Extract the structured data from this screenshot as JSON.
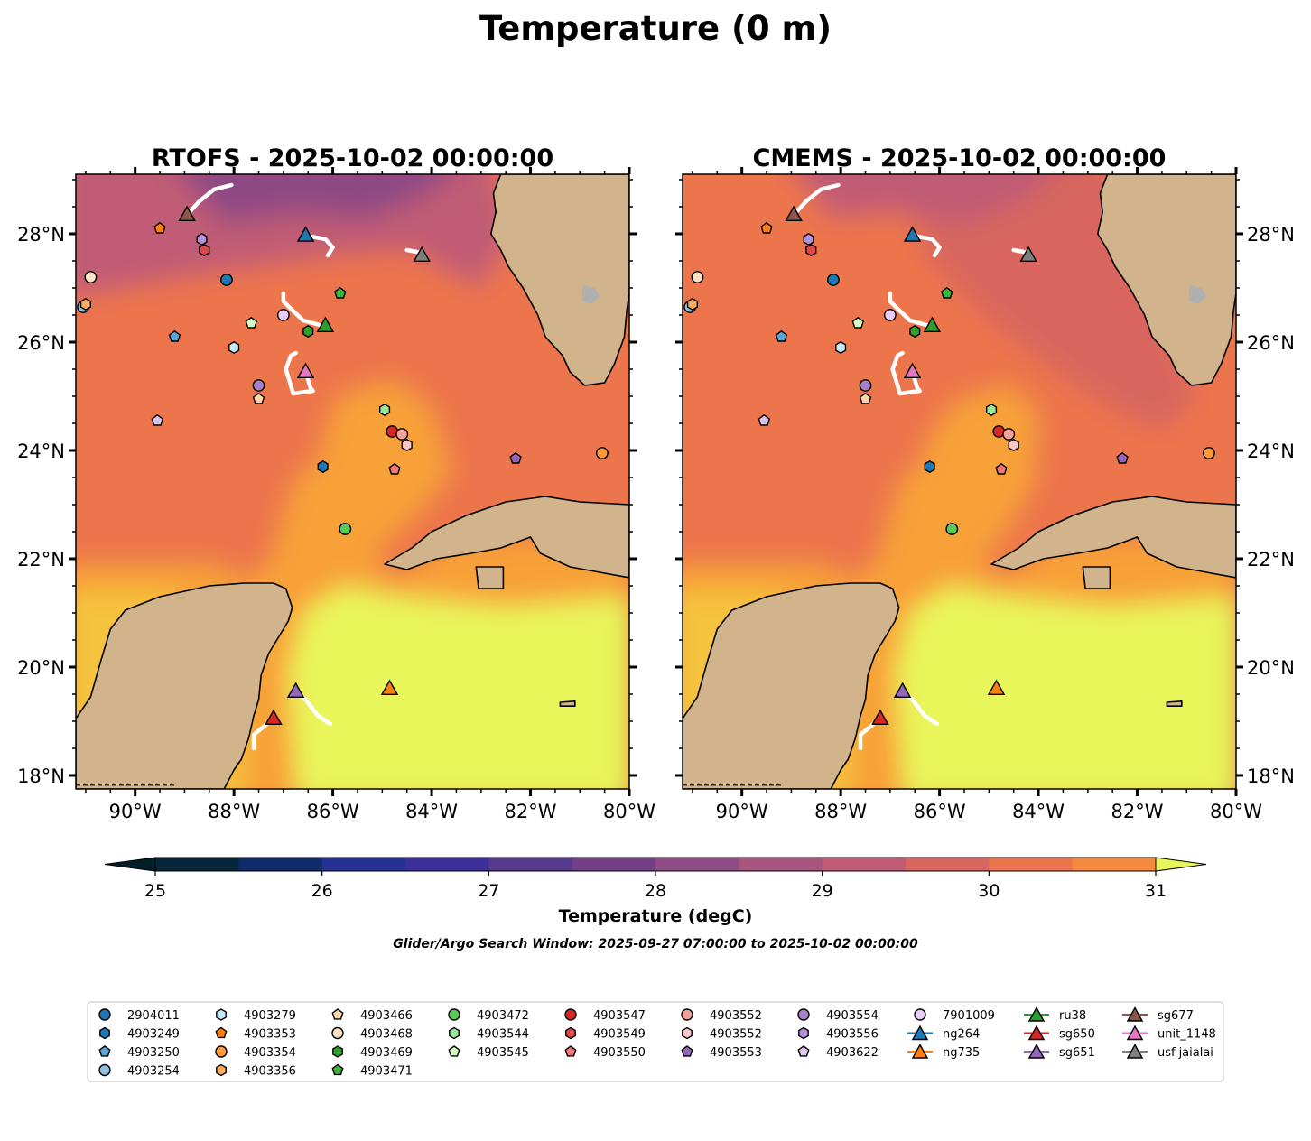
{
  "chart_data": {
    "type": "map",
    "title": "Temperature (0 m)",
    "panels": [
      {
        "title": "RTOFS - 2025-10-02 00:00:00",
        "variant": "rtofs"
      },
      {
        "title": "CMEMS - 2025-10-02 00:00:00",
        "variant": "cmems"
      }
    ],
    "lon_range": [
      -91.2,
      -80.0
    ],
    "lat_range": [
      17.75,
      29.1
    ],
    "lon_ticks": [
      -90,
      -88,
      -86,
      -84,
      -82,
      -80
    ],
    "lon_labels": [
      "90°W",
      "88°W",
      "86°W",
      "84°W",
      "82°W",
      "80°W"
    ],
    "lat_ticks": [
      18,
      20,
      22,
      24,
      26,
      28
    ],
    "lat_labels": [
      "18°N",
      "20°N",
      "22°N",
      "24°N",
      "26°N",
      "28°N"
    ],
    "colorbar": {
      "label": "Temperature (degC)",
      "min": 25,
      "max": 31,
      "step": 0.5,
      "extend": "both",
      "ticks": [
        "25",
        "26",
        "27",
        "28",
        "29",
        "30",
        "31"
      ],
      "colors": [
        "#062539",
        "#102b69",
        "#263196",
        "#3c2f9c",
        "#56388d",
        "#723f86",
        "#8d4a83",
        "#a7547f",
        "#c05c74",
        "#d8665f",
        "#ec754b",
        "#f58a3f",
        "#f8a137",
        "#f5c33d",
        "#e8f65a"
      ],
      "under_color": "#03202a",
      "over_color": "#e8f65a"
    },
    "search_window": "Glider/Argo Search Window: 2025-09-27 07:00:00 to 2025-10-02 00:00:00",
    "argo_floats": [
      {
        "name": "2904011",
        "lon": -88.15,
        "lat": 27.15,
        "marker": "circle",
        "color": "#1f77b4"
      },
      {
        "name": "4903249",
        "lon": -86.2,
        "lat": 23.7,
        "marker": "hexagon",
        "color": "#1f77b4"
      },
      {
        "name": "4903250",
        "lon": -89.2,
        "lat": 26.1,
        "marker": "pentagon",
        "color": "#5ba3d9"
      },
      {
        "name": "4903254",
        "lon": -91.05,
        "lat": 26.65,
        "marker": "circle",
        "color": "#8fbfe0"
      },
      {
        "name": "4903279",
        "lon": -88.0,
        "lat": 25.9,
        "marker": "hexagon",
        "color": "#c6e8fb"
      },
      {
        "name": "4903353",
        "lon": -89.5,
        "lat": 28.1,
        "marker": "pentagon",
        "color": "#ff7f0e"
      },
      {
        "name": "4903354",
        "lon": -80.55,
        "lat": 23.95,
        "marker": "circle",
        "color": "#fd9a3c"
      },
      {
        "name": "4903356",
        "lon": -91.0,
        "lat": 26.7,
        "marker": "hexagon",
        "color": "#ffab5e"
      },
      {
        "name": "4903466",
        "lon": -87.5,
        "lat": 24.95,
        "marker": "pentagon",
        "color": "#ffd4a6"
      },
      {
        "name": "4903468",
        "lon": -90.9,
        "lat": 27.2,
        "marker": "circle",
        "color": "#ffe2c6"
      },
      {
        "name": "4903469",
        "lon": -86.5,
        "lat": 26.2,
        "marker": "hexagon",
        "color": "#2ca02c"
      },
      {
        "name": "4903471",
        "lon": -85.85,
        "lat": 26.9,
        "marker": "pentagon",
        "color": "#3cb43c"
      },
      {
        "name": "4903472",
        "lon": -85.75,
        "lat": 22.55,
        "marker": "circle",
        "color": "#5ac85a"
      },
      {
        "name": "4903544",
        "lon": -84.95,
        "lat": 24.75,
        "marker": "hexagon",
        "color": "#98e698"
      },
      {
        "name": "4903545",
        "lon": -87.65,
        "lat": 26.35,
        "marker": "pentagon",
        "color": "#d3ffc0"
      },
      {
        "name": "4903547",
        "lon": -84.8,
        "lat": 24.35,
        "marker": "circle",
        "color": "#d62728"
      },
      {
        "name": "4903549",
        "lon": -88.6,
        "lat": 27.7,
        "marker": "hexagon",
        "color": "#e04848"
      },
      {
        "name": "4903550",
        "lon": -84.75,
        "lat": 23.65,
        "marker": "pentagon",
        "color": "#f0787a"
      },
      {
        "name": "4903552",
        "lon": -84.6,
        "lat": 24.3,
        "marker": "circle",
        "color": "#f4a09b"
      },
      {
        "name": "4903552",
        "lon": -84.5,
        "lat": 24.1,
        "marker": "hexagon",
        "color": "#ffc8c8"
      },
      {
        "name": "4903553",
        "lon": -82.3,
        "lat": 23.85,
        "marker": "pentagon",
        "color": "#9467bd"
      },
      {
        "name": "4903554",
        "lon": -87.5,
        "lat": 25.2,
        "marker": "circle",
        "color": "#a682c9"
      },
      {
        "name": "4903556",
        "lon": -88.65,
        "lat": 27.9,
        "marker": "hexagon",
        "color": "#b590dc"
      },
      {
        "name": "4903622",
        "lon": -89.55,
        "lat": 24.55,
        "marker": "pentagon",
        "color": "#dcc4f0"
      },
      {
        "name": "7901009",
        "lon": -87.0,
        "lat": 26.5,
        "marker": "circle",
        "color": "#e8ccfa"
      }
    ],
    "gliders": [
      {
        "name": "ru38",
        "lon": -86.15,
        "lat": 26.3,
        "color": "#2ca02c",
        "track": [
          [
            -87.0,
            26.9
          ],
          [
            -87.0,
            26.75
          ],
          [
            -86.6,
            26.4
          ],
          [
            -86.2,
            26.3
          ]
        ]
      },
      {
        "name": "sg650",
        "lon": -87.2,
        "lat": 19.05,
        "color": "#d62728",
        "track": [
          [
            -87.6,
            18.5
          ],
          [
            -87.6,
            18.75
          ],
          [
            -87.4,
            18.9
          ],
          [
            -87.2,
            19.05
          ]
        ]
      },
      {
        "name": "sg651",
        "lon": -86.75,
        "lat": 19.55,
        "color": "#9467bd",
        "track": [
          [
            -86.05,
            18.95
          ],
          [
            -86.3,
            19.1
          ],
          [
            -86.55,
            19.4
          ],
          [
            -86.75,
            19.55
          ]
        ]
      },
      {
        "name": "ng264",
        "lon": -86.55,
        "lat": 27.97,
        "color": "#1f77b4",
        "track": [
          [
            -86.55,
            27.97
          ],
          [
            -86.15,
            27.9
          ],
          [
            -86.0,
            27.75
          ],
          [
            -86.1,
            27.6
          ]
        ]
      },
      {
        "name": "ng735",
        "lon": -84.85,
        "lat": 19.6,
        "color": "#ff7f0e",
        "track": []
      },
      {
        "name": "sg677",
        "lon": -88.95,
        "lat": 28.35,
        "color": "#8c564b",
        "track": [
          [
            -88.95,
            28.35
          ],
          [
            -88.7,
            28.6
          ],
          [
            -88.4,
            28.82
          ],
          [
            -88.05,
            28.9
          ]
        ]
      },
      {
        "name": "unit_1148",
        "lon": -86.55,
        "lat": 25.45,
        "color": "#e377c2",
        "track": [
          [
            -86.55,
            25.45
          ],
          [
            -86.45,
            25.15
          ],
          [
            -86.4,
            25.1
          ],
          [
            -86.8,
            25.05
          ],
          [
            -86.95,
            25.5
          ],
          [
            -86.85,
            25.75
          ],
          [
            -86.75,
            25.8
          ]
        ]
      },
      {
        "name": "usf-jaialai",
        "lon": -84.2,
        "lat": 27.6,
        "color": "#7f7f7f",
        "track": [
          [
            -84.5,
            27.7
          ],
          [
            -84.2,
            27.65
          ]
        ]
      }
    ],
    "legend": {
      "placement": "bottom",
      "columns": [
        [
          "2904011",
          "4903249",
          "4903250",
          "4903254"
        ],
        [
          "4903279",
          "4903353",
          "4903354",
          "4903356"
        ],
        [
          "4903466",
          "4903468",
          "4903469",
          "4903471"
        ],
        [
          "4903472",
          "4903544",
          "4903545"
        ],
        [
          "4903547",
          "4903549",
          "4903550"
        ],
        [
          "4903552",
          "4903552",
          "4903553"
        ],
        [
          "4903554",
          "4903556",
          "4903622"
        ],
        [
          "7901009",
          "ng264",
          "ng735"
        ],
        [
          "ru38",
          "sg650",
          "sg651"
        ],
        [
          "sg677",
          "unit_1148",
          "usf-jaialai"
        ]
      ]
    }
  }
}
